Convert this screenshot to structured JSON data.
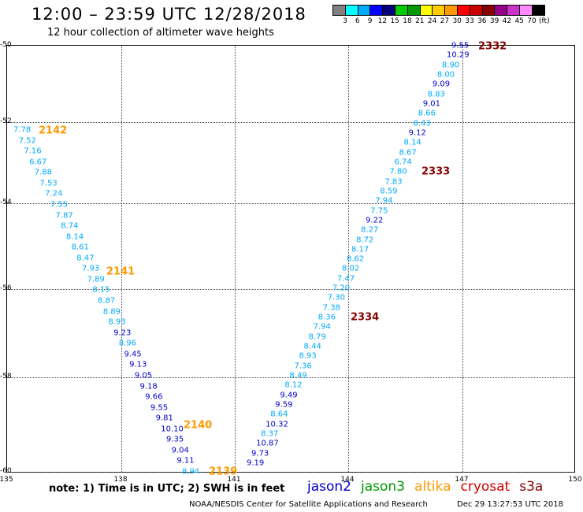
{
  "header": {
    "title": "12:00 – 23:59 UTC 12/28/2018",
    "subtitle": "12 hour collection of altimeter wave heights"
  },
  "legend": {
    "colors": [
      "#808080",
      "#00ffff",
      "#00aaff",
      "#0000ff",
      "#00007a",
      "#00cc00",
      "#009900",
      "#ffff00",
      "#ffcc00",
      "#ff9900",
      "#ff0000",
      "#cc0000",
      "#880000",
      "#990088",
      "#cc33cc",
      "#ff88ff",
      "#000000"
    ],
    "labels": [
      "3",
      "6",
      "9",
      "12",
      "15",
      "18",
      "21",
      "24",
      "27",
      "30",
      "33",
      "36",
      "39",
      "42",
      "45",
      "70",
      "(ft)"
    ]
  },
  "axes": {
    "x_ticks": [
      "135",
      "138",
      "141",
      "144",
      "147",
      "150"
    ],
    "y_ticks": [
      "-50",
      "-52",
      "-54",
      "-56",
      "-58",
      "-60"
    ]
  },
  "track_west": [
    [
      "7.78",
      "#00aaff"
    ],
    [
      "7.52",
      "#00aaff"
    ],
    [
      "7.16",
      "#00aaff"
    ],
    [
      "6.67",
      "#00aaff"
    ],
    [
      "7.88",
      "#00aaff"
    ],
    [
      "7.53",
      "#00aaff"
    ],
    [
      "7.24",
      "#00aaff"
    ],
    [
      "7.55",
      "#00aaff"
    ],
    [
      "7.87",
      "#00aaff"
    ],
    [
      "8.74",
      "#00aaff"
    ],
    [
      "8.14",
      "#00aaff"
    ],
    [
      "8.61",
      "#00aaff"
    ],
    [
      "8.47",
      "#00aaff"
    ],
    [
      "7.93",
      "#00aaff"
    ],
    [
      "7.89",
      "#00aaff"
    ],
    [
      "8.15",
      "#00aaff"
    ],
    [
      "8.87",
      "#00aaff"
    ],
    [
      "8.89",
      "#00aaff"
    ],
    [
      "8.93",
      "#00aaff"
    ],
    [
      "9.23",
      "#0000cc"
    ],
    [
      "8.96",
      "#00aaff"
    ],
    [
      "9.45",
      "#0000cc"
    ],
    [
      "9.13",
      "#0000cc"
    ],
    [
      "9.05",
      "#0000cc"
    ],
    [
      "9.18",
      "#0000cc"
    ],
    [
      "9.66",
      "#0000cc"
    ],
    [
      "9.55",
      "#0000cc"
    ],
    [
      "9.81",
      "#0000cc"
    ],
    [
      "10.10",
      "#0000cc"
    ],
    [
      "9.35",
      "#0000cc"
    ],
    [
      "9.04",
      "#0000cc"
    ],
    [
      "9.11",
      "#0000cc"
    ],
    [
      "8.94",
      "#00aaff"
    ]
  ],
  "track_east": [
    [
      "9.55",
      "#0000cc"
    ],
    [
      "10.29",
      "#0000cc"
    ],
    [
      "8.90",
      "#00aaff"
    ],
    [
      "8.00",
      "#00aaff"
    ],
    [
      "9.09",
      "#0000cc"
    ],
    [
      "8.83",
      "#00aaff"
    ],
    [
      "9.01",
      "#0000cc"
    ],
    [
      "8.66",
      "#00aaff"
    ],
    [
      "8.43",
      "#00aaff"
    ],
    [
      "9.12",
      "#0000cc"
    ],
    [
      "8.14",
      "#00aaff"
    ],
    [
      "8.67",
      "#00aaff"
    ],
    [
      "6.74",
      "#00aaff"
    ],
    [
      "7.80",
      "#00aaff"
    ],
    [
      "7.83",
      "#00aaff"
    ],
    [
      "8.59",
      "#00aaff"
    ],
    [
      "7.94",
      "#00aaff"
    ],
    [
      "7.75",
      "#00aaff"
    ],
    [
      "9.22",
      "#0000cc"
    ],
    [
      "8.27",
      "#00aaff"
    ],
    [
      "8.72",
      "#00aaff"
    ],
    [
      "8.17",
      "#00aaff"
    ],
    [
      "8.62",
      "#00aaff"
    ],
    [
      "8.02",
      "#00aaff"
    ],
    [
      "7.47",
      "#00aaff"
    ],
    [
      "7.20",
      "#00aaff"
    ],
    [
      "7.30",
      "#00aaff"
    ],
    [
      "7.38",
      "#00aaff"
    ],
    [
      "8.36",
      "#00aaff"
    ],
    [
      "7.94",
      "#00aaff"
    ],
    [
      "8.79",
      "#00aaff"
    ],
    [
      "8.44",
      "#00aaff"
    ],
    [
      "8.93",
      "#00aaff"
    ],
    [
      "7.36",
      "#00aaff"
    ],
    [
      "8.49",
      "#00aaff"
    ],
    [
      "8.12",
      "#00aaff"
    ],
    [
      "9.49",
      "#0000cc"
    ],
    [
      "9.59",
      "#0000cc"
    ],
    [
      "8.64",
      "#00aaff"
    ],
    [
      "10.32",
      "#0000cc"
    ],
    [
      "8.37",
      "#00aaff"
    ],
    [
      "10.87",
      "#0000cc"
    ],
    [
      "9.73",
      "#0000cc"
    ],
    [
      "9.19",
      "#0000cc"
    ]
  ],
  "passes": {
    "p2142": {
      "label": "2142",
      "color": "#ff9900"
    },
    "p2141": {
      "label": "2141",
      "color": "#ff9900"
    },
    "p2140": {
      "label": "2140",
      "color": "#ff9900"
    },
    "p2139": {
      "label": "2139",
      "color": "#ff9900"
    },
    "p2332": {
      "label": "2332",
      "color": "#880000"
    },
    "p2333": {
      "label": "2333",
      "color": "#880000"
    },
    "p2334": {
      "label": "2334",
      "color": "#880000"
    }
  },
  "footer": {
    "note": "note:  1) Time is in UTC;  2) SWH is in feet",
    "satellites": [
      {
        "name": "jason2",
        "color": "#0000cc"
      },
      {
        "name": "jason3",
        "color": "#009900"
      },
      {
        "name": "altika",
        "color": "#ff9900"
      },
      {
        "name": "cryosat",
        "color": "#cc0000"
      },
      {
        "name": "s3a",
        "color": "#880000"
      }
    ],
    "credit": "NOAA/NESDIS Center for Satellite Applications and Research",
    "timestamp": "Dec 29 13:27:53 UTC 2018"
  }
}
